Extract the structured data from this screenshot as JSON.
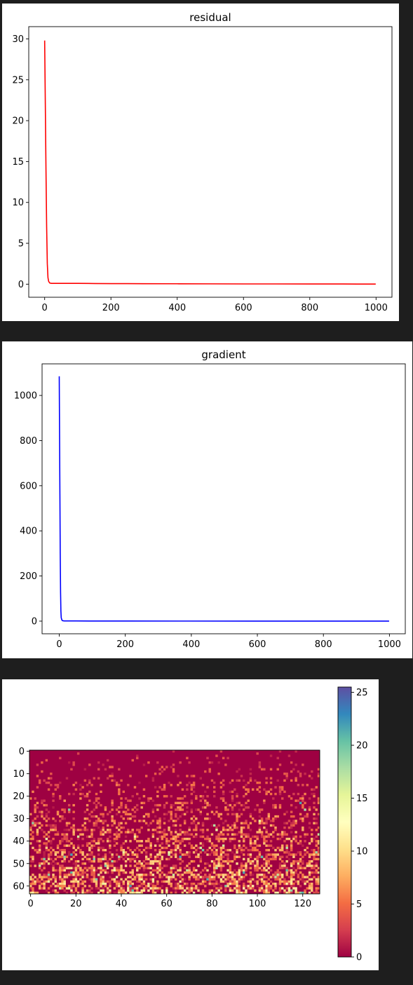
{
  "chart_data": [
    {
      "type": "line",
      "title": "residual",
      "xlabel": "",
      "ylabel": "",
      "xlim": [
        -48,
        1048
      ],
      "ylim": [
        -1.6,
        31.5
      ],
      "xticks": [
        0,
        200,
        400,
        600,
        800,
        1000
      ],
      "yticks": [
        0,
        5,
        10,
        15,
        20,
        25,
        30
      ],
      "series": [
        {
          "color": "#ff0000",
          "x": [
            0,
            2,
            4,
            6,
            8,
            10,
            12,
            15,
            20,
            30,
            50,
            100,
            150,
            200,
            250,
            300,
            400,
            500,
            600,
            700,
            800,
            900,
            999
          ],
          "y": [
            29.8,
            22.0,
            14.0,
            7.0,
            2.5,
            0.8,
            0.35,
            0.15,
            0.1,
            0.1,
            0.1,
            0.1,
            0.08,
            0.07,
            0.07,
            0.06,
            0.05,
            0.04,
            0.03,
            0.03,
            0.02,
            0.02,
            0.01
          ]
        }
      ]
    },
    {
      "type": "line",
      "title": "gradient",
      "xlabel": "",
      "ylabel": "",
      "xlim": [
        -52,
        1048
      ],
      "ylim": [
        -56,
        1140
      ],
      "xticks": [
        0,
        200,
        400,
        600,
        800,
        1000
      ],
      "yticks": [
        0,
        200,
        400,
        600,
        800,
        1000
      ],
      "series": [
        {
          "color": "#0000ff",
          "x": [
            0,
            1,
            2,
            3,
            4,
            5,
            6,
            8,
            10,
            15,
            20,
            50,
            100,
            200,
            400,
            600,
            800,
            999
          ],
          "y": [
            1085,
            820,
            560,
            300,
            130,
            45,
            15,
            5,
            2,
            1,
            1,
            0.8,
            0.6,
            0.5,
            0.3,
            0.2,
            0.1,
            0.05
          ]
        }
      ]
    },
    {
      "type": "heatmap",
      "title": "",
      "xlabel": "",
      "ylabel": "",
      "rows": 64,
      "cols": 128,
      "xticks": [
        0,
        20,
        40,
        60,
        80,
        100,
        120
      ],
      "yticks": [
        0,
        10,
        20,
        30,
        40,
        50,
        60
      ],
      "colormap": "Spectral",
      "vmin": 0,
      "vmax": 25.5,
      "colorbar_ticks": [
        0,
        5,
        10,
        15,
        20,
        25
      ],
      "description_of_values": "sparse non-negative values; row 0 mostly 0, density and magnitude of nonzero entries increase toward row 63 (typical 3-10, occasional up to ~20)"
    }
  ]
}
